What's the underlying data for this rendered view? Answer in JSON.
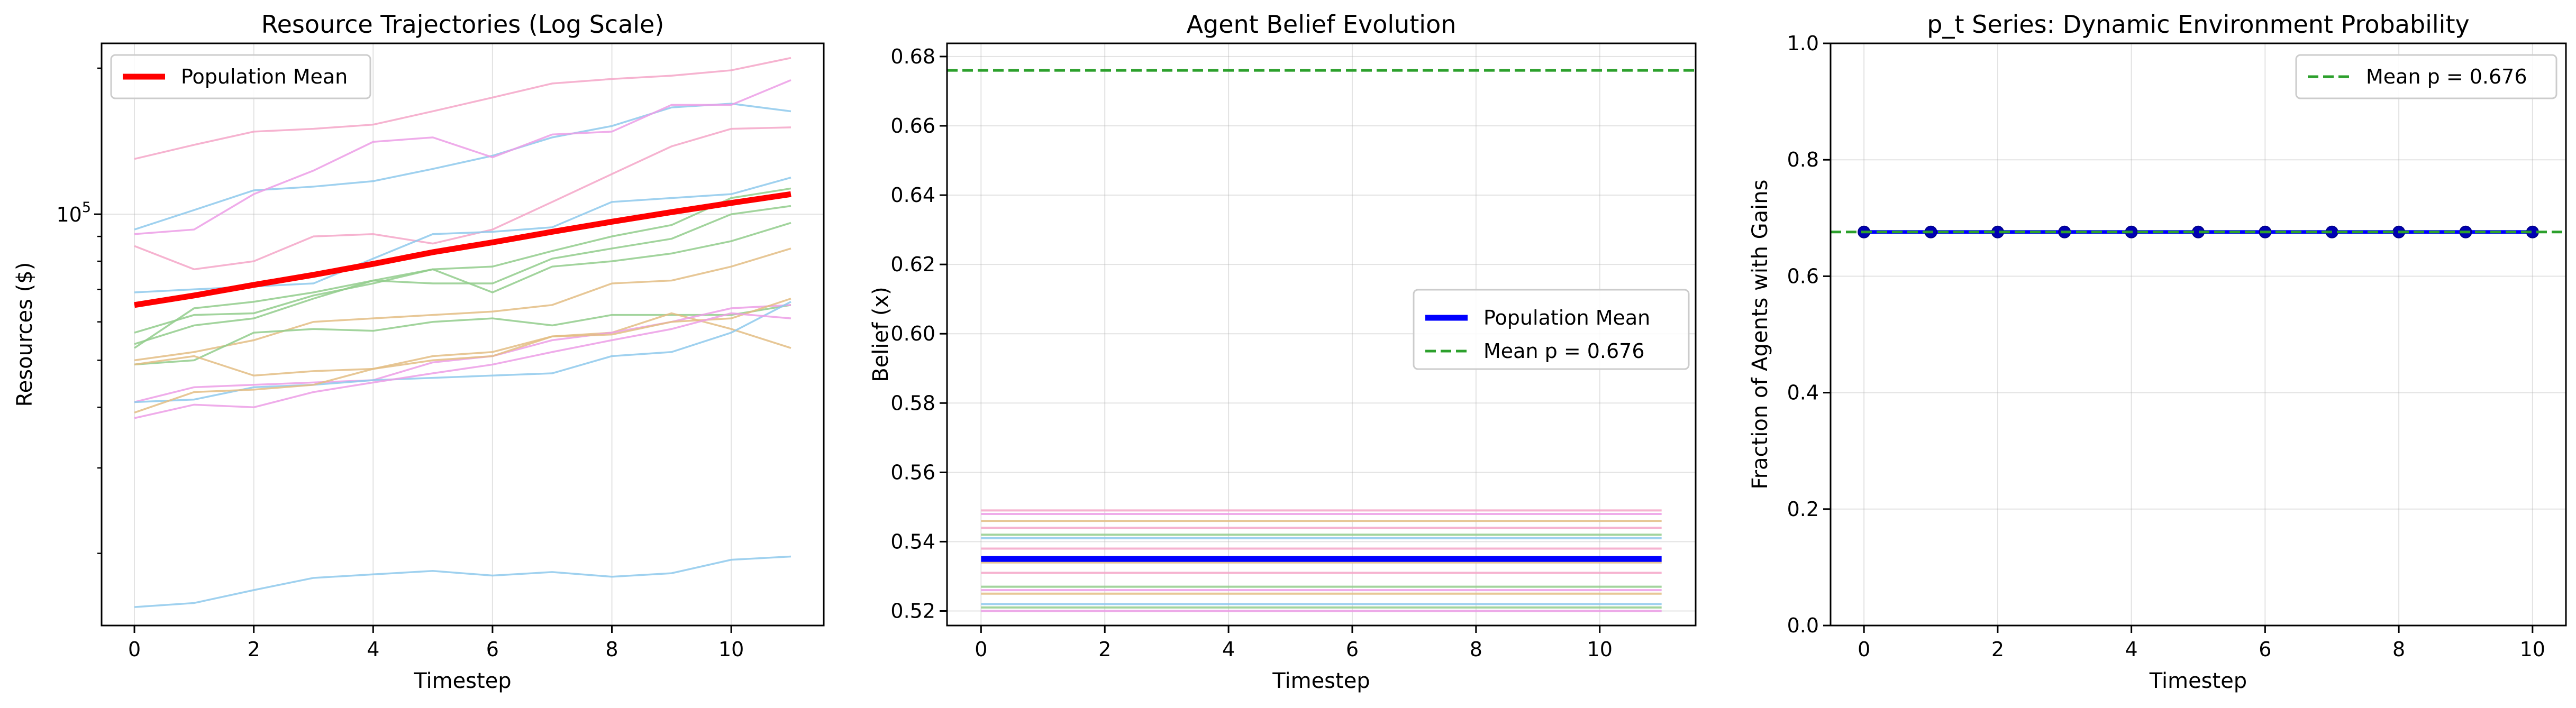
{
  "chart_data": [
    {
      "type": "line",
      "title": "Resource Trajectories (Log Scale)",
      "xlabel": "Timestep",
      "ylabel": "Resources ($)",
      "xlim": [
        -0.55,
        11.55
      ],
      "ylim": [
        14200,
        225000
      ],
      "yscale": "log",
      "xticks": [
        0,
        2,
        4,
        6,
        8,
        10
      ],
      "xtick_labels": [
        "0",
        "2",
        "4",
        "6",
        "8",
        "10"
      ],
      "ytick_label": {
        "base": "10",
        "exponent": "5"
      },
      "grid": true,
      "legend": {
        "placement": "upper-left",
        "entries": [
          "Population Mean"
        ]
      },
      "x": [
        0,
        1,
        2,
        3,
        4,
        5,
        6,
        7,
        8,
        9,
        10,
        11
      ],
      "mean": {
        "name": "Population Mean",
        "color": "#ff0000",
        "values": [
          65000,
          68000,
          71500,
          75000,
          79000,
          83500,
          87500,
          92000,
          96500,
          101000,
          105500,
          110000
        ]
      },
      "series": [
        {
          "color": "#f4a6c8",
          "values": [
            130000,
            139000,
            148000,
            150000,
            153000,
            163000,
            174000,
            186000,
            190000,
            193000,
            198000,
            210000
          ]
        },
        {
          "color": "#8ec9ec",
          "values": [
            93000,
            102000,
            112000,
            114000,
            117000,
            124000,
            132000,
            144000,
            152000,
            166000,
            169000,
            163000
          ]
        },
        {
          "color": "#ec9ee6",
          "values": [
            91000,
            93000,
            110000,
            123000,
            141000,
            144000,
            131000,
            146000,
            148000,
            168000,
            168000,
            189000
          ]
        },
        {
          "color": "#f4a6c8",
          "values": [
            86000,
            77000,
            80000,
            90000,
            91000,
            87000,
            93000,
            106000,
            121000,
            138000,
            150000,
            151000
          ]
        },
        {
          "color": "#8ec9ec",
          "values": [
            69000,
            70000,
            71000,
            72000,
            81000,
            91000,
            92000,
            94000,
            106000,
            108000,
            110000,
            119000
          ]
        },
        {
          "color": "#92cd8c",
          "values": [
            57000,
            62000,
            62500,
            68000,
            72000,
            77000,
            78000,
            84000,
            90000,
            95000,
            108000,
            113000
          ]
        },
        {
          "color": "#92cd8c",
          "values": [
            54000,
            59000,
            61000,
            67000,
            73000,
            72000,
            72000,
            81000,
            85000,
            89000,
            100000,
            104000
          ]
        },
        {
          "color": "#92cd8c",
          "values": [
            53000,
            64000,
            66000,
            69000,
            73000,
            77000,
            69000,
            78000,
            80000,
            83000,
            88000,
            96000
          ]
        },
        {
          "color": "#e3bd84",
          "values": [
            50000,
            52000,
            55000,
            60000,
            61000,
            62000,
            63000,
            65000,
            72000,
            73000,
            78000,
            85000
          ]
        },
        {
          "color": "#92cd8c",
          "values": [
            49000,
            50000,
            57000,
            58000,
            57500,
            60000,
            61000,
            59000,
            62000,
            62000,
            62000,
            65000
          ]
        },
        {
          "color": "#e3bd84",
          "values": [
            49000,
            51000,
            46500,
            47500,
            48000,
            51000,
            52000,
            56000,
            57000,
            62500,
            58000,
            53000
          ]
        },
        {
          "color": "#ec9ee6",
          "values": [
            41000,
            44000,
            44500,
            45000,
            45500,
            49500,
            51000,
            55000,
            57000,
            60000,
            64000,
            65000
          ]
        },
        {
          "color": "#8ec9ec",
          "values": [
            41000,
            41500,
            44000,
            44500,
            45500,
            46000,
            46500,
            47000,
            51000,
            52000,
            57000,
            66000
          ]
        },
        {
          "color": "#e3bd84",
          "values": [
            39000,
            43000,
            43500,
            44500,
            48000,
            50000,
            51000,
            56000,
            56500,
            60000,
            61000,
            67000
          ]
        },
        {
          "color": "#ec9ee6",
          "values": [
            38000,
            40500,
            40000,
            43000,
            45000,
            47000,
            49000,
            52000,
            55000,
            58000,
            62500,
            61000
          ]
        },
        {
          "color": "#8ec9ec",
          "values": [
            15500,
            15800,
            16800,
            17800,
            18100,
            18400,
            18000,
            18300,
            17900,
            18200,
            19400,
            19700
          ]
        }
      ]
    },
    {
      "type": "line",
      "title": "Agent Belief Evolution",
      "xlabel": "Timestep",
      "ylabel": "Belief (x)",
      "xlim": [
        -0.55,
        11.55
      ],
      "ylim": [
        0.5158,
        0.6838
      ],
      "xticks": [
        0,
        2,
        4,
        6,
        8,
        10
      ],
      "xtick_labels": [
        "0",
        "2",
        "4",
        "6",
        "8",
        "10"
      ],
      "yticks": [
        0.52,
        0.54,
        0.56,
        0.58,
        0.6,
        0.62,
        0.64,
        0.66,
        0.68
      ],
      "ytick_labels": [
        "0.52",
        "0.54",
        "0.56",
        "0.58",
        "0.60",
        "0.62",
        "0.64",
        "0.66",
        "0.68"
      ],
      "grid": true,
      "legend": {
        "placement": "center-right",
        "entries": [
          "Population Mean",
          "Mean p = 0.676"
        ]
      },
      "x": [
        0,
        11
      ],
      "mean": {
        "name": "Population Mean",
        "color": "#0000ff",
        "value": 0.535
      },
      "reference_line": {
        "name": "Mean p = 0.676",
        "color": "#2ca02c",
        "value": 0.676
      },
      "agents": [
        {
          "color": "#f4a6c8",
          "value": 0.549
        },
        {
          "color": "#ec9ee6",
          "value": 0.548
        },
        {
          "color": "#e3bd84",
          "value": 0.546
        },
        {
          "color": "#f4a6c8",
          "value": 0.544
        },
        {
          "color": "#92cd8c",
          "value": 0.542
        },
        {
          "color": "#8ec9ec",
          "value": 0.541
        },
        {
          "color": "#f4a6c8",
          "value": 0.538
        },
        {
          "color": "#e3bd84",
          "value": 0.534
        },
        {
          "color": "#f4a6c8",
          "value": 0.531
        },
        {
          "color": "#92cd8c",
          "value": 0.527
        },
        {
          "color": "#ec9ee6",
          "value": 0.526
        },
        {
          "color": "#e3bd84",
          "value": 0.525
        },
        {
          "color": "#8ec9ec",
          "value": 0.522
        },
        {
          "color": "#92cd8c",
          "value": 0.521
        },
        {
          "color": "#ec9ee6",
          "value": 0.52
        }
      ]
    },
    {
      "type": "line",
      "title": "p_t Series: Dynamic Environment Probability",
      "xlabel": "Timestep",
      "ylabel": "Fraction of Agents with Gains",
      "xlim": [
        -0.5,
        10.5
      ],
      "ylim": [
        0,
        1
      ],
      "xticks": [
        0,
        2,
        4,
        6,
        8,
        10
      ],
      "xtick_labels": [
        "0",
        "2",
        "4",
        "6",
        "8",
        "10"
      ],
      "yticks": [
        0,
        0.2,
        0.4,
        0.6,
        0.8,
        1.0
      ],
      "ytick_labels": [
        "0.0",
        "0.2",
        "0.4",
        "0.6",
        "0.8",
        "1.0"
      ],
      "grid": true,
      "legend": {
        "placement": "upper-right",
        "entries": [
          "Mean p = 0.676"
        ]
      },
      "x": [
        0,
        1,
        2,
        3,
        4,
        5,
        6,
        7,
        8,
        9,
        10
      ],
      "series": [
        {
          "color": "#0000ff",
          "values": [
            0.676,
            0.676,
            0.676,
            0.676,
            0.676,
            0.676,
            0.676,
            0.676,
            0.676,
            0.676,
            0.676
          ]
        }
      ],
      "reference_line": {
        "name": "Mean p = 0.676",
        "color": "#2ca02c",
        "value": 0.676
      }
    }
  ]
}
